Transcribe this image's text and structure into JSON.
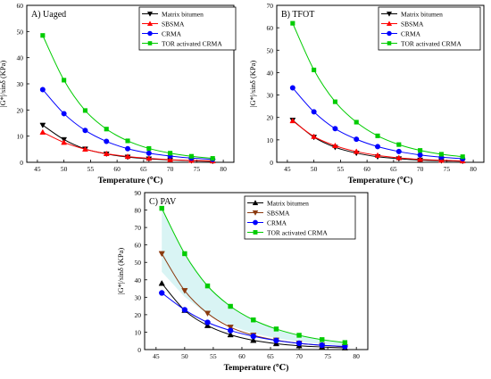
{
  "chart_data": [
    {
      "type": "line",
      "title": "A) Uaged",
      "xlabel": "Temperature (℃)",
      "ylabel": "|G*|/sinδ (KPa)",
      "xlim": [
        43,
        82
      ],
      "ylim": [
        0,
        60
      ],
      "xticks": [
        45,
        50,
        55,
        60,
        65,
        70,
        75,
        80
      ],
      "yticks": [
        0,
        10,
        20,
        30,
        40,
        50,
        60
      ],
      "x": [
        46,
        50,
        54,
        58,
        62,
        66,
        70,
        74,
        78
      ],
      "legend_position": "top-right",
      "series": [
        {
          "name": "Matrix bitumen",
          "color": "#000000",
          "marker": "triangle-down",
          "values": [
            14.2,
            8.7,
            5.1,
            3.2,
            2.0,
            1.3,
            0.9,
            0.6,
            0.4
          ]
        },
        {
          "name": "SBSMA",
          "color": "#ff0000",
          "marker": "triangle-up",
          "values": [
            11.5,
            7.6,
            5.0,
            3.3,
            2.2,
            1.5,
            1.0,
            0.7,
            0.5
          ]
        },
        {
          "name": "CRMA",
          "color": "#0000ff",
          "marker": "circle",
          "values": [
            27.8,
            18.6,
            12.2,
            8.0,
            5.2,
            3.5,
            2.4,
            1.6,
            1.1
          ]
        },
        {
          "name": "TOR activated CRMA",
          "color": "#00cc00",
          "marker": "square",
          "values": [
            48.5,
            31.4,
            19.8,
            12.7,
            8.2,
            5.3,
            3.5,
            2.3,
            1.5
          ]
        }
      ]
    },
    {
      "type": "line",
      "title": "B) TFOT",
      "xlabel": "Temperature (℃)",
      "ylabel": "|G*|/sinδ (KPa)",
      "xlim": [
        43,
        82
      ],
      "ylim": [
        0,
        70
      ],
      "xticks": [
        45,
        50,
        55,
        60,
        65,
        70,
        75,
        80
      ],
      "yticks": [
        0,
        10,
        20,
        30,
        40,
        50,
        60,
        70
      ],
      "x": [
        46,
        50,
        54,
        58,
        62,
        66,
        70,
        74,
        78
      ],
      "legend_position": "top-right",
      "series": [
        {
          "name": "Matrix bitumen",
          "color": "#000000",
          "marker": "triangle-down",
          "values": [
            18.8,
            11.2,
            6.7,
            4.1,
            2.5,
            1.6,
            1.0,
            0.7,
            0.5
          ]
        },
        {
          "name": "SBSMA",
          "color": "#ff0000",
          "marker": "triangle-up",
          "values": [
            18.5,
            11.5,
            7.4,
            4.8,
            3.1,
            2.0,
            1.3,
            0.9,
            0.6
          ]
        },
        {
          "name": "CRMA",
          "color": "#0000ff",
          "marker": "circle",
          "values": [
            33.2,
            22.5,
            15.0,
            10.3,
            7.0,
            4.8,
            3.3,
            2.3,
            1.6
          ]
        },
        {
          "name": "TOR activated CRMA",
          "color": "#00cc00",
          "marker": "square",
          "values": [
            62.0,
            41.2,
            27.0,
            17.9,
            11.8,
            7.9,
            5.3,
            3.6,
            2.5
          ]
        }
      ]
    },
    {
      "type": "line",
      "title": "C) PAV",
      "xlabel": "Temperature (℃)",
      "ylabel": "|G*|/sinδ (KPa)",
      "xlim": [
        43,
        82
      ],
      "ylim": [
        0,
        90
      ],
      "xticks": [
        45,
        50,
        55,
        60,
        65,
        70,
        75,
        80
      ],
      "yticks": [
        0,
        10,
        20,
        30,
        40,
        50,
        60,
        70,
        80,
        90
      ],
      "x": [
        46,
        50,
        54,
        58,
        62,
        66,
        70,
        74,
        78
      ],
      "legend_position": "top-right",
      "series": [
        {
          "name": "Matrix bitumen",
          "color": "#000000",
          "marker": "triangle-up",
          "values": [
            38.0,
            22.5,
            13.8,
            8.5,
            5.3,
            3.4,
            2.2,
            1.5,
            1.0
          ]
        },
        {
          "name": "SBSMA",
          "color": "#8b3a0f",
          "marker": "triangle-down",
          "values": [
            55.0,
            33.8,
            20.8,
            12.8,
            8.2,
            5.4,
            3.6,
            2.4,
            1.6
          ]
        },
        {
          "name": "CRMA",
          "color": "#0000ff",
          "marker": "circle",
          "values": [
            32.5,
            22.8,
            15.6,
            10.9,
            7.6,
            5.2,
            3.6,
            2.5,
            1.8
          ]
        },
        {
          "name": "TOR activated CRMA",
          "color": "#00cc00",
          "marker": "square",
          "values": [
            81.0,
            55.0,
            36.5,
            24.8,
            17.0,
            11.8,
            8.2,
            5.7,
            4.0
          ]
        }
      ]
    }
  ]
}
